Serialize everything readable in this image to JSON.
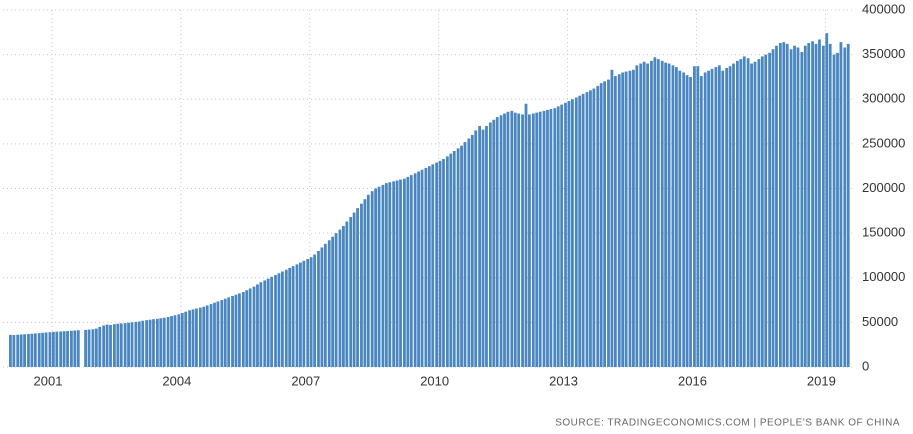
{
  "chart_data": {
    "type": "bar",
    "source": "SOURCE: TRADINGECONOMICS.COM | PEOPLE'S BANK OF CHINA",
    "color": "#4a86c0",
    "grid": true,
    "y_axis_side": "right",
    "xlim": [
      1999.86,
      2019.62
    ],
    "xticks": [
      2001,
      2004,
      2007,
      2010,
      2013,
      2016,
      2019
    ],
    "ylim": [
      0,
      400000
    ],
    "yticks": [
      0,
      50000,
      100000,
      150000,
      200000,
      250000,
      300000,
      350000,
      400000
    ],
    "x": [
      2000,
      2000.08,
      2000.17,
      2000.25,
      2000.33,
      2000.42,
      2000.5,
      2000.58,
      2000.67,
      2000.75,
      2000.83,
      2000.92,
      2001,
      2001.08,
      2001.17,
      2001.25,
      2001.33,
      2001.42,
      2001.5,
      2001.58,
      2001.67,
      2001.75,
      2001.83,
      2001.92,
      2002,
      2002.08,
      2002.17,
      2002.25,
      2002.33,
      2002.42,
      2002.5,
      2002.58,
      2002.67,
      2002.75,
      2002.83,
      2002.92,
      2003,
      2003.08,
      2003.17,
      2003.25,
      2003.33,
      2003.42,
      2003.5,
      2003.58,
      2003.67,
      2003.75,
      2003.83,
      2003.92,
      2004,
      2004.08,
      2004.17,
      2004.25,
      2004.33,
      2004.42,
      2004.5,
      2004.58,
      2004.67,
      2004.75,
      2004.83,
      2004.92,
      2005,
      2005.08,
      2005.17,
      2005.25,
      2005.33,
      2005.42,
      2005.5,
      2005.58,
      2005.67,
      2005.75,
      2005.83,
      2005.92,
      2006,
      2006.08,
      2006.17,
      2006.25,
      2006.33,
      2006.42,
      2006.5,
      2006.58,
      2006.67,
      2006.75,
      2006.83,
      2006.92,
      2007,
      2007.08,
      2007.17,
      2007.25,
      2007.33,
      2007.42,
      2007.5,
      2007.58,
      2007.67,
      2007.75,
      2007.83,
      2007.92,
      2008,
      2008.08,
      2008.17,
      2008.25,
      2008.33,
      2008.42,
      2008.5,
      2008.58,
      2008.67,
      2008.75,
      2008.83,
      2008.92,
      2009,
      2009.08,
      2009.17,
      2009.25,
      2009.33,
      2009.42,
      2009.5,
      2009.58,
      2009.67,
      2009.75,
      2009.83,
      2009.92,
      2010,
      2010.08,
      2010.17,
      2010.25,
      2010.33,
      2010.42,
      2010.5,
      2010.58,
      2010.67,
      2010.75,
      2010.83,
      2010.92,
      2011,
      2011.08,
      2011.17,
      2011.25,
      2011.33,
      2011.42,
      2011.5,
      2011.58,
      2011.67,
      2011.75,
      2011.83,
      2011.92,
      2012,
      2012.08,
      2012.17,
      2012.25,
      2012.33,
      2012.42,
      2012.5,
      2012.58,
      2012.67,
      2012.75,
      2012.83,
      2012.92,
      2013,
      2013.08,
      2013.17,
      2013.25,
      2013.33,
      2013.42,
      2013.5,
      2013.58,
      2013.67,
      2013.75,
      2013.83,
      2013.92,
      2014,
      2014.08,
      2014.17,
      2014.25,
      2014.33,
      2014.42,
      2014.5,
      2014.58,
      2014.67,
      2014.75,
      2014.83,
      2014.92,
      2015,
      2015.08,
      2015.17,
      2015.25,
      2015.33,
      2015.42,
      2015.5,
      2015.58,
      2015.67,
      2015.75,
      2015.83,
      2015.92,
      2016,
      2016.08,
      2016.17,
      2016.25,
      2016.33,
      2016.42,
      2016.5,
      2016.58,
      2016.67,
      2016.75,
      2016.83,
      2016.92,
      2017,
      2017.08,
      2017.17,
      2017.25,
      2017.33,
      2017.42,
      2017.5,
      2017.58,
      2017.67,
      2017.75,
      2017.83,
      2017.92,
      2018,
      2018.08,
      2018.17,
      2018.25,
      2018.33,
      2018.42,
      2018.5,
      2018.58,
      2018.67,
      2018.75,
      2018.83,
      2018.92,
      2019,
      2019.08,
      2019.17,
      2019.25,
      2019.33,
      2019.42,
      2019.5
    ],
    "values": [
      36000,
      35800,
      36100,
      36400,
      36700,
      37000,
      37300,
      37600,
      37900,
      38300,
      38700,
      39000,
      39400,
      39600,
      39800,
      40100,
      40300,
      40600,
      40900,
      41200,
      null,
      41600,
      42000,
      42300,
      43000,
      45000,
      46500,
      47500,
      47000,
      48000,
      48500,
      48800,
      49200,
      49600,
      50100,
      50500,
      51000,
      51800,
      52500,
      53000,
      53600,
      54000,
      54600,
      55200,
      56000,
      57000,
      58000,
      59000,
      60500,
      62000,
      63500,
      64500,
      65500,
      66500,
      67500,
      69000,
      70500,
      72000,
      73500,
      75000,
      76500,
      78000,
      79500,
      81000,
      82500,
      84000,
      86000,
      88000,
      90000,
      92500,
      95000,
      97000,
      99000,
      101000,
      103000,
      105000,
      107000,
      109000,
      111000,
      113000,
      115000,
      117000,
      119000,
      121000,
      123000,
      126000,
      130000,
      134000,
      138000,
      142000,
      146000,
      150000,
      154000,
      158000,
      163000,
      168000,
      173000,
      178000,
      183000,
      188000,
      193000,
      197000,
      200000,
      202000,
      204000,
      206000,
      207000,
      208000,
      209000,
      210000,
      211000,
      213000,
      215000,
      217000,
      219000,
      221000,
      223000,
      225000,
      227000,
      229000,
      231000,
      233000,
      236000,
      239000,
      242000,
      245000,
      248000,
      252000,
      256000,
      260000,
      265000,
      270000,
      266000,
      270000,
      274000,
      277000,
      280000,
      282000,
      284000,
      286000,
      287000,
      285000,
      284000,
      283000,
      295000,
      283000,
      284000,
      285000,
      286000,
      287000,
      288000,
      289000,
      290000,
      292000,
      294000,
      296000,
      298000,
      300000,
      302000,
      304000,
      306000,
      308000,
      310000,
      312000,
      315000,
      318000,
      320000,
      322000,
      333000,
      326000,
      328000,
      330000,
      331000,
      332000,
      333000,
      338000,
      340000,
      342000,
      340000,
      343000,
      347000,
      345000,
      343000,
      341000,
      340000,
      338000,
      336000,
      332000,
      330000,
      327000,
      325000,
      337000,
      337000,
      326000,
      330000,
      332000,
      334000,
      336000,
      338000,
      332000,
      335000,
      337000,
      340000,
      343000,
      345000,
      348000,
      346000,
      340000,
      342000,
      345000,
      348000,
      350000,
      352000,
      356000,
      360000,
      363000,
      364000,
      362000,
      356000,
      360000,
      358000,
      353000,
      360000,
      363000,
      365000,
      362000,
      367000,
      360000,
      374000,
      362000,
      350000,
      352000,
      364000,
      358000,
      362000
    ]
  }
}
